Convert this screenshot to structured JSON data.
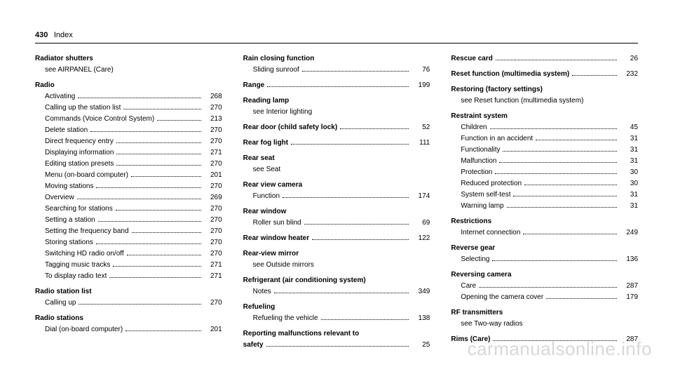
{
  "header": {
    "pageNumber": "430",
    "title": "Index"
  },
  "watermark": "carmanualsonline.info",
  "col1": [
    {
      "type": "bold",
      "text": "Radiator shutters"
    },
    {
      "type": "see",
      "text": "see AIRPANEL (Care)"
    },
    {
      "type": "bold",
      "text": "Radio"
    },
    {
      "type": "sub",
      "label": "Activating",
      "page": "268"
    },
    {
      "type": "sub",
      "label": "Calling up the station list",
      "page": "270"
    },
    {
      "type": "sub",
      "label": "Commands (Voice Control System)",
      "page": "213"
    },
    {
      "type": "sub",
      "label": "Delete station",
      "page": "270"
    },
    {
      "type": "sub",
      "label": "Direct frequency entry",
      "page": "270"
    },
    {
      "type": "sub",
      "label": "Displaying information",
      "page": "271"
    },
    {
      "type": "sub",
      "label": "Editing station presets",
      "page": "270"
    },
    {
      "type": "sub",
      "label": "Menu (on-board computer)",
      "page": "201"
    },
    {
      "type": "sub",
      "label": "Moving stations",
      "page": "270"
    },
    {
      "type": "sub",
      "label": "Overview",
      "page": "269"
    },
    {
      "type": "sub",
      "label": "Searching for stations",
      "page": "270"
    },
    {
      "type": "sub",
      "label": "Setting a station",
      "page": "270"
    },
    {
      "type": "sub",
      "label": "Setting the frequency band",
      "page": "270"
    },
    {
      "type": "sub",
      "label": "Storing stations",
      "page": "270"
    },
    {
      "type": "sub",
      "label": "Switching HD radio on/off",
      "page": "270"
    },
    {
      "type": "sub",
      "label": "Tagging music tracks",
      "page": "271"
    },
    {
      "type": "sub",
      "label": "To display radio text",
      "page": "271"
    },
    {
      "type": "bold",
      "text": "Radio station list"
    },
    {
      "type": "sub",
      "label": "Calling up",
      "page": "270"
    },
    {
      "type": "bold",
      "text": "Radio stations"
    },
    {
      "type": "sub",
      "label": "Dial (on-board computer)",
      "page": "201"
    }
  ],
  "col2": [
    {
      "type": "bold",
      "text": "Rain closing function"
    },
    {
      "type": "sub",
      "label": "Sliding sunroof",
      "page": "76"
    },
    {
      "type": "boldline",
      "label": "Range",
      "page": "199"
    },
    {
      "type": "bold",
      "text": "Reading lamp"
    },
    {
      "type": "see",
      "text": "see Interior lighting"
    },
    {
      "type": "boldline",
      "label": "Rear door (child safety lock)",
      "page": "52"
    },
    {
      "type": "boldline",
      "label": "Rear fog light",
      "page": "111"
    },
    {
      "type": "bold",
      "text": "Rear seat"
    },
    {
      "type": "see",
      "text": "see Seat"
    },
    {
      "type": "bold",
      "text": "Rear view camera"
    },
    {
      "type": "sub",
      "label": "Function",
      "page": "174"
    },
    {
      "type": "bold",
      "text": "Rear window"
    },
    {
      "type": "sub",
      "label": "Roller sun blind",
      "page": "69"
    },
    {
      "type": "boldline",
      "label": "Rear window heater",
      "page": "122"
    },
    {
      "type": "bold",
      "text": "Rear-view mirror"
    },
    {
      "type": "see",
      "text": "see Outside mirrors"
    },
    {
      "type": "bold",
      "text": "Refrigerant (air conditioning system)"
    },
    {
      "type": "sub",
      "label": "Notes",
      "page": "349"
    },
    {
      "type": "bold",
      "text": "Refueling"
    },
    {
      "type": "sub",
      "label": "Refueling the vehicle",
      "page": "138"
    },
    {
      "type": "bold",
      "text": "Reporting malfunctions relevant to"
    },
    {
      "type": "boldcont",
      "label": "safety",
      "page": "25"
    }
  ],
  "col3": [
    {
      "type": "boldline",
      "label": "Rescue card",
      "page": "26"
    },
    {
      "type": "boldline",
      "label": "Reset function (multimedia system)",
      "page": "232"
    },
    {
      "type": "bold",
      "text": "Restoring (factory settings)"
    },
    {
      "type": "see",
      "text": "see Reset function (multimedia system)"
    },
    {
      "type": "bold",
      "text": "Restraint system"
    },
    {
      "type": "sub",
      "label": "Children",
      "page": "45"
    },
    {
      "type": "sub",
      "label": "Function in an accident",
      "page": "31"
    },
    {
      "type": "sub",
      "label": "Functionality",
      "page": "31"
    },
    {
      "type": "sub",
      "label": "Malfunction",
      "page": "31"
    },
    {
      "type": "sub",
      "label": "Protection",
      "page": "30"
    },
    {
      "type": "sub",
      "label": "Reduced protection",
      "page": "30"
    },
    {
      "type": "sub",
      "label": "System self-test",
      "page": "31"
    },
    {
      "type": "sub",
      "label": "Warning lamp",
      "page": "31"
    },
    {
      "type": "bold",
      "text": "Restrictions"
    },
    {
      "type": "sub",
      "label": "Internet connection",
      "page": "249"
    },
    {
      "type": "bold",
      "text": "Reverse gear"
    },
    {
      "type": "sub",
      "label": "Selecting",
      "page": "136"
    },
    {
      "type": "bold",
      "text": "Reversing camera"
    },
    {
      "type": "sub",
      "label": "Care",
      "page": "287"
    },
    {
      "type": "sub",
      "label": "Opening the camera cover",
      "page": "179"
    },
    {
      "type": "bold",
      "text": "RF transmitters"
    },
    {
      "type": "see",
      "text": "see Two-way radios"
    },
    {
      "type": "boldline",
      "label": "Rims (Care)",
      "page": "287"
    }
  ]
}
